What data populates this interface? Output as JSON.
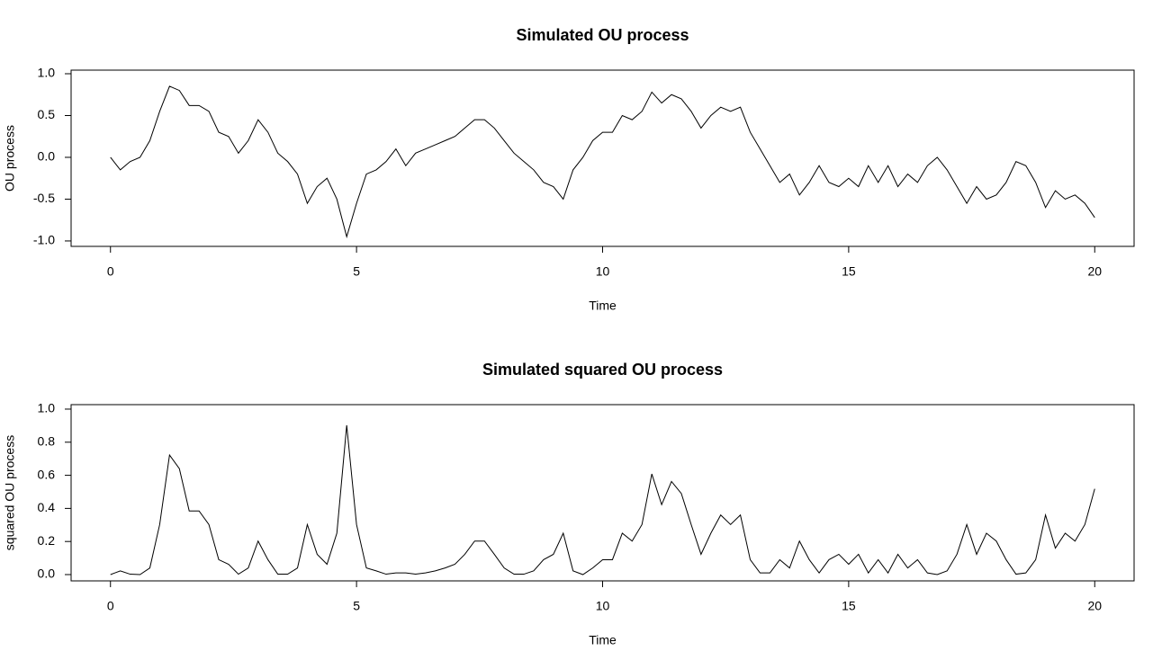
{
  "chart_data": [
    {
      "type": "line",
      "title": "Simulated OU process",
      "x_label": "Time",
      "y_label": "OU process",
      "x": [
        0,
        0.2,
        0.4,
        0.6,
        0.8,
        1,
        1.2,
        1.4,
        1.6,
        1.8,
        2,
        2.2,
        2.4,
        2.6,
        2.8,
        3,
        3.2,
        3.4,
        3.6,
        3.8,
        4,
        4.2,
        4.4,
        4.6,
        4.8,
        5,
        5.2,
        5.4,
        5.6,
        5.8,
        6,
        6.2,
        6.4,
        6.6,
        6.8,
        7,
        7.2,
        7.4,
        7.6,
        7.8,
        8,
        8.2,
        8.4,
        8.6,
        8.8,
        9,
        9.2,
        9.4,
        9.6,
        9.8,
        10,
        10.2,
        10.4,
        10.6,
        10.8,
        11,
        11.2,
        11.4,
        11.6,
        11.8,
        12,
        12.2,
        12.4,
        12.6,
        12.8,
        13,
        13.2,
        13.4,
        13.6,
        13.8,
        14,
        14.2,
        14.4,
        14.6,
        14.8,
        15,
        15.2,
        15.4,
        15.6,
        15.8,
        16,
        16.2,
        16.4,
        16.6,
        16.8,
        17,
        17.2,
        17.4,
        17.6,
        17.8,
        18,
        18.2,
        18.4,
        18.6,
        18.8,
        19,
        19.2,
        19.4,
        19.6,
        19.8,
        20
      ],
      "series": [
        {
          "color": "#000000",
          "values": [
            0,
            -0.15,
            -0.05,
            0,
            0.2,
            0.55,
            0.85,
            0.8,
            0.62,
            0.62,
            0.55,
            0.3,
            0.25,
            0.05,
            0.2,
            0.45,
            0.3,
            0.05,
            -0.05,
            -0.2,
            -0.55,
            -0.35,
            -0.25,
            -0.5,
            -0.95,
            -0.55,
            -0.2,
            -0.15,
            -0.05,
            0.1,
            -0.1,
            0.05,
            0.1,
            0.15,
            0.2,
            0.25,
            0.35,
            0.45,
            0.45,
            0.35,
            0.2,
            0.05,
            -0.05,
            -0.15,
            -0.3,
            -0.35,
            -0.5,
            -0.15,
            0,
            0.2,
            0.3,
            0.3,
            0.5,
            0.45,
            0.55,
            0.78,
            0.65,
            0.75,
            0.7,
            0.55,
            0.35,
            0.5,
            0.6,
            0.55,
            0.6,
            0.3,
            0.1,
            -0.1,
            -0.3,
            -0.2,
            -0.45,
            -0.3,
            -0.1,
            -0.3,
            -0.35,
            -0.25,
            -0.35,
            -0.1,
            -0.3,
            -0.1,
            -0.35,
            -0.2,
            -0.3,
            -0.1,
            0,
            -0.15,
            -0.35,
            -0.55,
            -0.35,
            -0.5,
            -0.45,
            -0.3,
            -0.05,
            -0.1,
            -0.3,
            -0.6,
            -0.4,
            -0.5,
            -0.45,
            -0.55,
            -0.72
          ]
        }
      ],
      "xlim": [
        -0.8,
        20.8
      ],
      "xticks": [
        0,
        5,
        10,
        15,
        20
      ],
      "ylim": [
        -1.065,
        1.043
      ],
      "yticks": [
        {
          "value": -1,
          "label": "-1.0"
        },
        -0.5,
        {
          "value": 0,
          "label": "0.0"
        },
        0.5,
        {
          "value": 1,
          "label": "1.0"
        }
      ]
    },
    {
      "type": "line",
      "title": "Simulated squared OU process",
      "x_label": "Time",
      "y_label": "squared OU process",
      "x": [
        0,
        0.2,
        0.4,
        0.6,
        0.8,
        1,
        1.2,
        1.4,
        1.6,
        1.8,
        2,
        2.2,
        2.4,
        2.6,
        2.8,
        3,
        3.2,
        3.4,
        3.6,
        3.8,
        4,
        4.2,
        4.4,
        4.6,
        4.8,
        5,
        5.2,
        5.4,
        5.6,
        5.8,
        6,
        6.2,
        6.4,
        6.6,
        6.8,
        7,
        7.2,
        7.4,
        7.6,
        7.8,
        8,
        8.2,
        8.4,
        8.6,
        8.8,
        9,
        9.2,
        9.4,
        9.6,
        9.8,
        10,
        10.2,
        10.4,
        10.6,
        10.8,
        11,
        11.2,
        11.4,
        11.6,
        11.8,
        12,
        12.2,
        12.4,
        12.6,
        12.8,
        13,
        13.2,
        13.4,
        13.6,
        13.8,
        14,
        14.2,
        14.4,
        14.6,
        14.8,
        15,
        15.2,
        15.4,
        15.6,
        15.8,
        16,
        16.2,
        16.4,
        16.6,
        16.8,
        17,
        17.2,
        17.4,
        17.6,
        17.8,
        18,
        18.2,
        18.4,
        18.6,
        18.8,
        19,
        19.2,
        19.4,
        19.6,
        19.8,
        20
      ],
      "series": [
        {
          "color": "#000000",
          "values": [
            0,
            0.0225,
            0.0025,
            0,
            0.04,
            0.3025,
            0.7225,
            0.64,
            0.3844,
            0.3844,
            0.3025,
            0.09,
            0.0625,
            0.0025,
            0.04,
            0.2025,
            0.09,
            0.0025,
            0.0025,
            0.04,
            0.3025,
            0.1225,
            0.0625,
            0.25,
            0.9025,
            0.3025,
            0.04,
            0.0225,
            0.0025,
            0.01,
            0.01,
            0.0025,
            0.01,
            0.0225,
            0.04,
            0.0625,
            0.1225,
            0.2025,
            0.2025,
            0.1225,
            0.04,
            0.0025,
            0.0025,
            0.0225,
            0.09,
            0.1225,
            0.25,
            0.0225,
            0,
            0.04,
            0.09,
            0.09,
            0.25,
            0.2025,
            0.3025,
            0.6084,
            0.4225,
            0.5625,
            0.49,
            0.3025,
            0.1225,
            0.25,
            0.36,
            0.3025,
            0.36,
            0.09,
            0.01,
            0.01,
            0.09,
            0.04,
            0.2025,
            0.09,
            0.01,
            0.09,
            0.1225,
            0.0625,
            0.1225,
            0.01,
            0.09,
            0.01,
            0.1225,
            0.04,
            0.09,
            0.01,
            0,
            0.0225,
            0.1225,
            0.3025,
            0.1225,
            0.25,
            0.2025,
            0.09,
            0.0025,
            0.01,
            0.09,
            0.36,
            0.16,
            0.25,
            0.2025,
            0.3025,
            0.5184
          ]
        }
      ],
      "xlim": [
        -0.8,
        20.8
      ],
      "xticks": [
        0,
        5,
        10,
        15,
        20
      ],
      "ylim": [
        -0.038,
        1.027
      ],
      "yticks": [
        {
          "value": 0,
          "label": "0.0"
        },
        0.2,
        0.4,
        0.6,
        0.8,
        {
          "value": 1,
          "label": "1.0"
        }
      ]
    }
  ]
}
